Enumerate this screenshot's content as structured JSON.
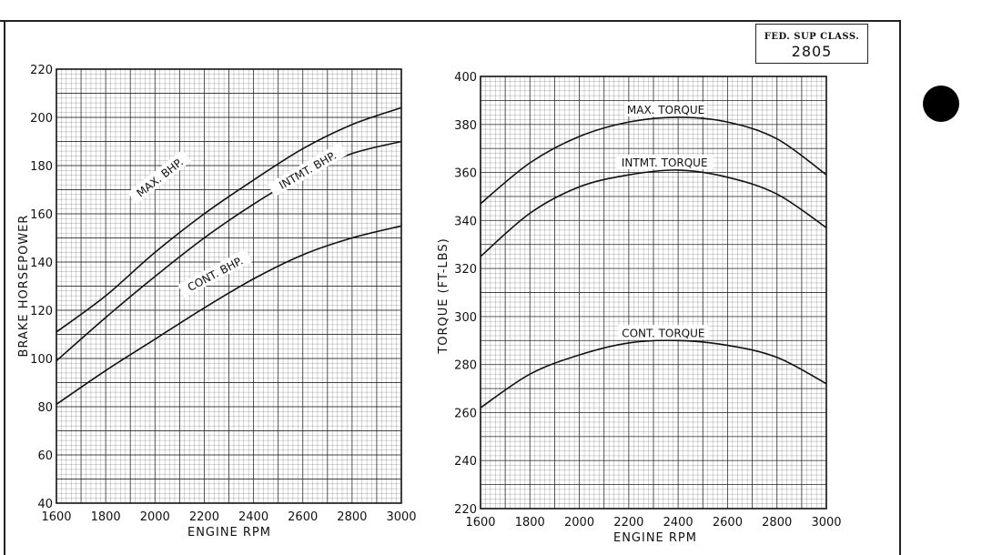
{
  "document": {
    "class_label": "FED. SUP CLASS.",
    "class_number": "2805"
  },
  "chart_data": [
    {
      "type": "line",
      "title": "",
      "xlabel": "ENGINE RPM",
      "ylabel": "BRAKE HORSEPOWER",
      "xlim": [
        1600,
        3000
      ],
      "ylim": [
        40,
        220
      ],
      "x_ticks": [
        1600,
        1800,
        2000,
        2200,
        2400,
        2600,
        2800,
        3000
      ],
      "y_ticks": [
        40,
        60,
        80,
        100,
        120,
        140,
        160,
        180,
        200,
        220
      ],
      "x_tick_labels": [
        "1600",
        "1800",
        "2000",
        "2200",
        "2400",
        "2600",
        "2800",
        "3000"
      ],
      "y_tick_labels": [
        "40",
        "60",
        "80",
        "100",
        "120",
        "140",
        "160",
        "180",
        "200",
        "220"
      ],
      "grid": true,
      "x": [
        1600,
        1800,
        2000,
        2200,
        2400,
        2600,
        2800,
        3000
      ],
      "series": [
        {
          "name": "MAX. BHP.",
          "values": [
            111,
            126,
            144,
            160,
            174,
            187,
            197,
            204
          ]
        },
        {
          "name": "INTMT. BHP.",
          "values": [
            99,
            117,
            134,
            150,
            164,
            176,
            185,
            190
          ]
        },
        {
          "name": "CONT. BHP.",
          "values": [
            81,
            95,
            108,
            121,
            133,
            143,
            150,
            155
          ]
        }
      ]
    },
    {
      "type": "line",
      "title": "",
      "xlabel": "ENGINE RPM",
      "ylabel": "TORQUE (FT-LBS)",
      "xlim": [
        1600,
        3000
      ],
      "ylim": [
        220,
        400
      ],
      "x_ticks": [
        1600,
        1800,
        2000,
        2200,
        2400,
        2600,
        2800,
        3000
      ],
      "y_ticks": [
        220,
        240,
        260,
        280,
        300,
        320,
        340,
        360,
        380,
        400
      ],
      "x_tick_labels": [
        "1600",
        "1800",
        "2000",
        "2200",
        "2400",
        "2600",
        "2800",
        "3000"
      ],
      "y_tick_labels": [
        "220",
        "240",
        "260",
        "280",
        "300",
        "320",
        "340",
        "360",
        "380",
        "400"
      ],
      "grid": true,
      "x": [
        1600,
        1800,
        2000,
        2200,
        2400,
        2600,
        2800,
        3000
      ],
      "series": [
        {
          "name": "MAX. TORQUE",
          "values": [
            347,
            364,
            375,
            381,
            383,
            381,
            374,
            359
          ]
        },
        {
          "name": "INTMT. TORQUE",
          "values": [
            325,
            343,
            354,
            359,
            361,
            358,
            351,
            337
          ]
        },
        {
          "name": "CONT. TORQUE",
          "values": [
            262,
            276,
            284,
            289,
            290,
            288,
            283,
            272
          ]
        }
      ]
    }
  ]
}
